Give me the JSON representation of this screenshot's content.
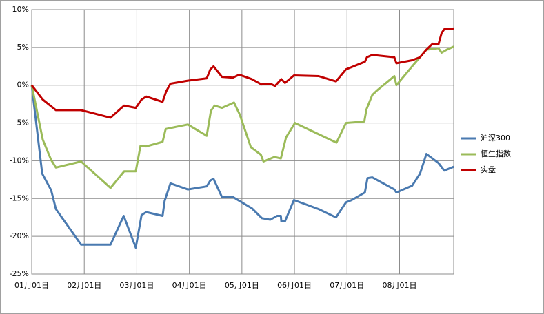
{
  "chart_data": {
    "type": "line",
    "xlim": [
      0,
      8.03
    ],
    "ylim": [
      -25,
      10
    ],
    "xticks": [
      {
        "value": 0,
        "label": "01月01日"
      },
      {
        "value": 1,
        "label": "02月01日"
      },
      {
        "value": 2,
        "label": "03月01日"
      },
      {
        "value": 3,
        "label": "04月01日"
      },
      {
        "value": 4,
        "label": "05月01日"
      },
      {
        "value": 5,
        "label": "06月01日"
      },
      {
        "value": 6,
        "label": "07月01日"
      },
      {
        "value": 7,
        "label": "08月01日"
      }
    ],
    "yticks": [
      {
        "value": -25,
        "label": "-25%"
      },
      {
        "value": -20,
        "label": "-20%"
      },
      {
        "value": -15,
        "label": "-15%"
      },
      {
        "value": -10,
        "label": "-10%"
      },
      {
        "value": -5,
        "label": "-5%"
      },
      {
        "value": 0,
        "label": "0%"
      },
      {
        "value": 5,
        "label": "5%"
      },
      {
        "value": 10,
        "label": "10%"
      }
    ],
    "grid": true,
    "legend": "right",
    "series": [
      {
        "name": "沪深300",
        "color": "#4a7ab0",
        "x": [
          0,
          0.2,
          0.37,
          0.46,
          0.94,
          1.5,
          1.75,
          1.98,
          2.09,
          2.18,
          2.49,
          2.53,
          2.64,
          2.97,
          3.33,
          3.4,
          3.46,
          3.62,
          3.83,
          3.95,
          4.19,
          4.38,
          4.54,
          4.67,
          4.74,
          4.75,
          4.82,
          4.99,
          5.46,
          5.79,
          5.98,
          6.09,
          6.34,
          6.39,
          6.48,
          6.9,
          6.94,
          7.24,
          7.39,
          7.51,
          7.74,
          7.85,
          8.03
        ],
        "values": [
          0,
          -11.7,
          -13.9,
          -16.4,
          -21.1,
          -21.1,
          -17.3,
          -21.5,
          -17.2,
          -16.8,
          -17.3,
          -15.3,
          -13.0,
          -13.8,
          -13.4,
          -12.6,
          -12.4,
          -14.8,
          -14.8,
          -15.3,
          -16.3,
          -17.6,
          -17.8,
          -17.3,
          -17.3,
          -18.0,
          -18.0,
          -15.2,
          -16.4,
          -17.5,
          -15.5,
          -15.2,
          -14.2,
          -12.3,
          -12.2,
          -13.8,
          -14.2,
          -13.3,
          -11.7,
          -9.1,
          -10.3,
          -11.3,
          -10.8
        ]
      },
      {
        "name": "恒生指数",
        "color": "#9bbb59",
        "x": [
          0,
          0.21,
          0.37,
          0.46,
          0.94,
          1.5,
          1.76,
          1.98,
          2.07,
          2.18,
          2.49,
          2.55,
          2.97,
          3.33,
          3.41,
          3.48,
          3.62,
          3.85,
          3.96,
          4.17,
          4.36,
          4.41,
          4.62,
          4.74,
          4.84,
          5.01,
          5.8,
          5.98,
          6.33,
          6.37,
          6.48,
          6.57,
          6.9,
          6.94,
          7.24,
          7.51,
          7.74,
          7.8,
          7.9,
          8.03
        ],
        "values": [
          0,
          -7.2,
          -9.9,
          -10.9,
          -10.1,
          -13.6,
          -11.4,
          -11.4,
          -8.0,
          -8.1,
          -7.5,
          -5.8,
          -5.2,
          -6.7,
          -3.4,
          -2.7,
          -3.0,
          -2.3,
          -3.9,
          -8.2,
          -9.2,
          -10.1,
          -9.5,
          -9.7,
          -6.9,
          -5.0,
          -7.6,
          -5.0,
          -4.8,
          -3.2,
          -1.3,
          -0.7,
          1.2,
          0.0,
          2.5,
          4.7,
          4.9,
          4.3,
          4.7,
          5.1
        ]
      },
      {
        "name": "实盘",
        "color": "#c00000",
        "x": [
          0,
          0.21,
          0.46,
          0.94,
          1.5,
          1.76,
          1.98,
          2.09,
          2.18,
          2.49,
          2.56,
          2.64,
          2.97,
          3.33,
          3.4,
          3.46,
          3.62,
          3.83,
          3.95,
          4.19,
          4.37,
          4.54,
          4.63,
          4.75,
          4.82,
          4.99,
          5.46,
          5.79,
          5.98,
          6.34,
          6.38,
          6.48,
          6.9,
          6.94,
          7.24,
          7.39,
          7.51,
          7.63,
          7.74,
          7.8,
          7.85,
          8.03
        ],
        "values": [
          0,
          -1.9,
          -3.3,
          -3.3,
          -4.3,
          -2.7,
          -3.0,
          -1.9,
          -1.5,
          -2.2,
          -0.8,
          0.2,
          0.6,
          0.9,
          2.1,
          2.5,
          1.1,
          1.0,
          1.4,
          0.8,
          0.1,
          0.2,
          -0.1,
          0.8,
          0.3,
          1.3,
          1.2,
          0.5,
          2.1,
          3.1,
          3.7,
          4.0,
          3.7,
          2.9,
          3.3,
          3.7,
          4.7,
          5.5,
          5.4,
          6.9,
          7.4,
          7.5
        ]
      }
    ]
  }
}
